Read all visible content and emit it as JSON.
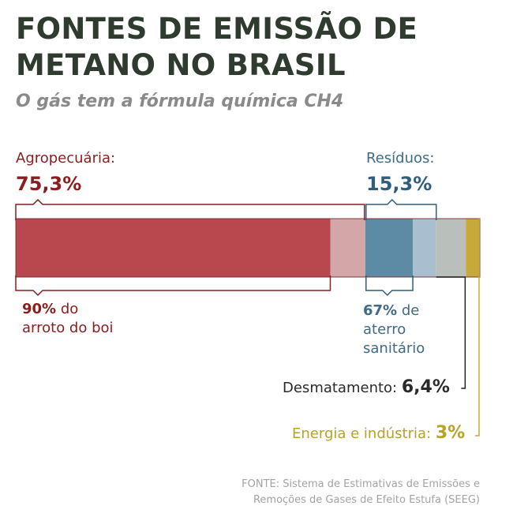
{
  "header": {
    "title_line1": "FONTES DE EMISSÃO DE",
    "title_line2": "METANO NO BRASIL",
    "subtitle": "O gás tem a fórmula química CH4"
  },
  "labels": {
    "agro_name": "Agropecuária:",
    "agro_pct": "75,3%",
    "agro_sub_pct": "90%",
    "agro_sub_text1": " do",
    "agro_sub_text2": "arroto do boi",
    "res_name": "Resíduos:",
    "res_pct": "15,3%",
    "res_sub_pct": "67%",
    "res_sub_text1": " de",
    "res_sub_text2": "aterro",
    "res_sub_text3": "sanitário",
    "desm_name": "Desmatamento: ",
    "desm_pct": "6,4%",
    "energ_name": "Energia e indústria: ",
    "energ_pct": "3%"
  },
  "source": {
    "line1": "FONTE: Sistema de Estimativas de Emissões e",
    "line2": "Remoções de Gases de Efeito Estufa (SEEG)"
  },
  "colors": {
    "agro": "#b8474e",
    "agro_light": "#d3a6a7",
    "res": "#5d8aa5",
    "res_light": "#a9bfcf",
    "desm": "#b9bfba",
    "energ": "#c6a93a"
  },
  "chart_data": {
    "type": "bar",
    "title": "FONTES DE EMISSÃO DE METANO NO BRASIL",
    "segments": [
      {
        "name": "Agropecuária",
        "value": 75.3,
        "sub_share": 90,
        "sub_label": "arroto do boi"
      },
      {
        "name": "Resíduos",
        "value": 15.3,
        "sub_share": 67,
        "sub_label": "aterro sanitário"
      },
      {
        "name": "Desmatamento",
        "value": 6.4
      },
      {
        "name": "Energia e indústria",
        "value": 3.0
      }
    ]
  }
}
